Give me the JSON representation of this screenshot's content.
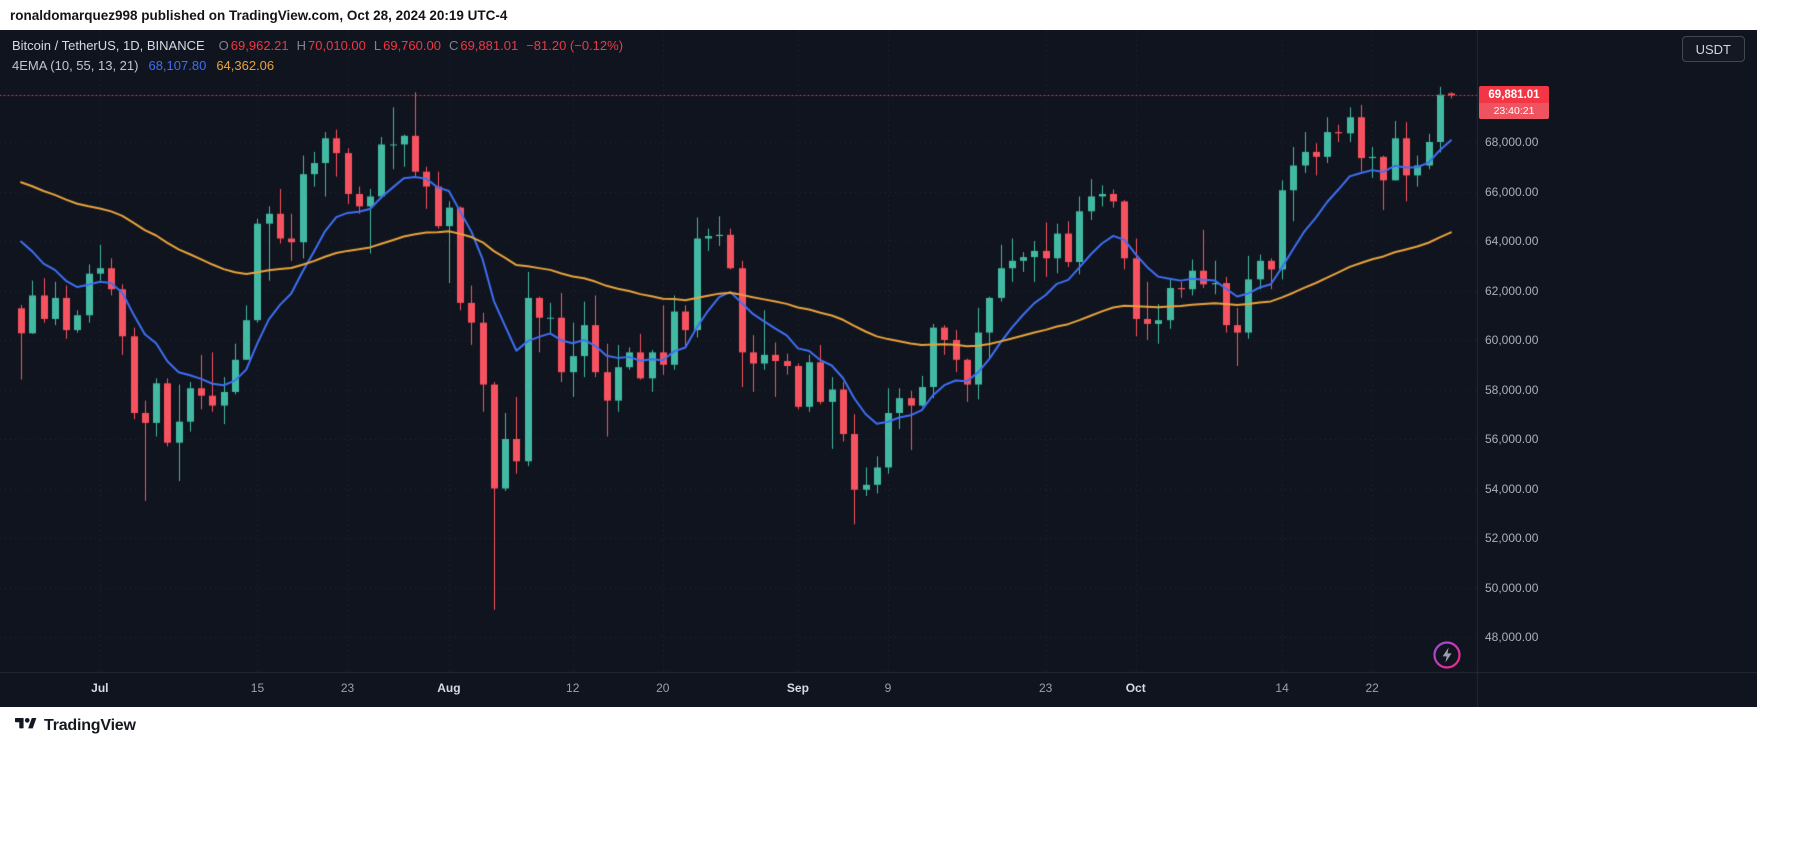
{
  "page": {
    "header": "ronaldomarquez998 published on TradingView.com, Oct 28, 2024 20:19 UTC-4",
    "footer_brand": "TradingView"
  },
  "legend": {
    "symbol": "Bitcoin / TetherUS, 1D, BINANCE",
    "ohlc": {
      "o_label": "O",
      "o": "69,962.21",
      "h_label": "H",
      "h": "70,010.00",
      "l_label": "L",
      "l": "69,760.00",
      "c_label": "C",
      "c": "69,881.01",
      "change": "−81.20 (−0.12%)"
    },
    "indicator": {
      "name": "4EMA (10, 55, 13, 21)",
      "fast_value": "68,107.80",
      "slow_value": "64,362.06"
    }
  },
  "currency_button": "USDT",
  "price_tag": {
    "price": "69,881.01",
    "countdown": "23:40:21"
  },
  "price_axis": {
    "labels": [
      {
        "text": "68,000.00",
        "value": 68000
      },
      {
        "text": "66,000.00",
        "value": 66000
      },
      {
        "text": "64,000.00",
        "value": 64000
      },
      {
        "text": "62,000.00",
        "value": 62000
      },
      {
        "text": "60,000.00",
        "value": 60000
      },
      {
        "text": "58,000.00",
        "value": 58000
      },
      {
        "text": "56,000.00",
        "value": 56000
      },
      {
        "text": "54,000.00",
        "value": 54000
      },
      {
        "text": "52,000.00",
        "value": 52000
      },
      {
        "text": "50,000.00",
        "value": 50000
      },
      {
        "text": "48,000.00",
        "value": 48000
      }
    ]
  },
  "time_axis": {
    "ticks": [
      {
        "label": "Jul",
        "i": 7,
        "major": true
      },
      {
        "label": "15",
        "i": 21,
        "major": false
      },
      {
        "label": "23",
        "i": 29,
        "major": false
      },
      {
        "label": "Aug",
        "i": 38,
        "major": true
      },
      {
        "label": "12",
        "i": 49,
        "major": false
      },
      {
        "label": "20",
        "i": 57,
        "major": false
      },
      {
        "label": "Sep",
        "i": 69,
        "major": true
      },
      {
        "label": "9",
        "i": 77,
        "major": false
      },
      {
        "label": "23",
        "i": 91,
        "major": false
      },
      {
        "label": "Oct",
        "i": 99,
        "major": true
      },
      {
        "label": "14",
        "i": 112,
        "major": false
      },
      {
        "label": "22",
        "i": 120,
        "major": false
      }
    ]
  },
  "colors": {
    "background": "#10141e",
    "up": "#42b9a2",
    "down": "#f7525f",
    "ema_fast": "#3e6ff5",
    "ema_slow": "#e8a33c",
    "last_price": "#f23645",
    "grid": "rgba(205,210,222,0.10)",
    "separator": "#232a37"
  },
  "chart_data": {
    "type": "candlestick",
    "title": "Bitcoin / TetherUS, 1D, BINANCE",
    "interval": "1D",
    "last_price": 69881.01,
    "ylim": [
      46500,
      72300
    ],
    "legend_position": "top-left",
    "grid": "dotted",
    "overlays": [
      {
        "name": "EMA fast",
        "period": 10,
        "color": "#3e6ff5",
        "start_value": 64800,
        "last_value": 68107.8
      },
      {
        "name": "EMA slow",
        "period": 55,
        "color": "#e8a33c",
        "start_value": 66600,
        "last_value": 64362.06
      }
    ],
    "candles": [
      [
        "Jun 24",
        61280,
        61420,
        58400,
        60270
      ],
      [
        "Jun 25",
        60270,
        62400,
        60250,
        61800
      ],
      [
        "Jun 26",
        61800,
        62500,
        60700,
        60850
      ],
      [
        "Jun 27",
        60850,
        62350,
        60600,
        61700
      ],
      [
        "Jun 28",
        61700,
        62200,
        60050,
        60400
      ],
      [
        "Jun 29",
        60400,
        61200,
        60300,
        61000
      ],
      [
        "Jun 30",
        61000,
        63050,
        60700,
        62680
      ],
      [
        "Jul 1",
        62680,
        63850,
        62400,
        62900
      ],
      [
        "Jul 2",
        62900,
        63300,
        61800,
        62050
      ],
      [
        "Jul 3",
        62050,
        62250,
        59400,
        60150
      ],
      [
        "Jul 4",
        60150,
        60500,
        56800,
        57050
      ],
      [
        "Jul 5",
        57050,
        57550,
        53500,
        56650
      ],
      [
        "Jul 6",
        56650,
        58450,
        56100,
        58250
      ],
      [
        "Jul 7",
        58250,
        58450,
        55700,
        55850
      ],
      [
        "Jul 8",
        55850,
        58200,
        54300,
        56700
      ],
      [
        "Jul 9",
        56700,
        58300,
        56300,
        58050
      ],
      [
        "Jul 10",
        58050,
        59400,
        57200,
        57750
      ],
      [
        "Jul 11",
        57750,
        59500,
        57100,
        57350
      ],
      [
        "Jul 12",
        57350,
        58500,
        56600,
        57900
      ],
      [
        "Jul 13",
        57900,
        59850,
        57800,
        59200
      ],
      [
        "Jul 14",
        59200,
        61400,
        59200,
        60800
      ],
      [
        "Jul 15",
        60800,
        64900,
        60700,
        64700
      ],
      [
        "Jul 16",
        64700,
        65400,
        62400,
        65100
      ],
      [
        "Jul 17",
        65100,
        66100,
        63900,
        64100
      ],
      [
        "Jul 18",
        64100,
        65100,
        63200,
        63950
      ],
      [
        "Jul 19",
        63950,
        67450,
        63300,
        66700
      ],
      [
        "Jul 20",
        66700,
        67600,
        66200,
        67150
      ],
      [
        "Jul 21",
        67150,
        68400,
        65800,
        68150
      ],
      [
        "Jul 22",
        68150,
        68500,
        66600,
        67550
      ],
      [
        "Jul 23",
        67550,
        67750,
        65500,
        65900
      ],
      [
        "Jul 24",
        65900,
        66200,
        65100,
        65400
      ],
      [
        "Jul 25",
        65400,
        66100,
        63500,
        65800
      ],
      [
        "Jul 26",
        65800,
        68200,
        65700,
        67900
      ],
      [
        "Jul 27",
        67900,
        69400,
        66900,
        67900
      ],
      [
        "Jul 28",
        67900,
        68300,
        67000,
        68250
      ],
      [
        "Jul 29",
        68250,
        70010,
        66550,
        66800
      ],
      [
        "Jul 30",
        66800,
        67000,
        65300,
        66200
      ],
      [
        "Jul 31",
        66200,
        66800,
        64500,
        64600
      ],
      [
        "Aug 1",
        64600,
        65600,
        62300,
        65350
      ],
      [
        "Aug 2",
        65350,
        65400,
        61200,
        61500
      ],
      [
        "Aug 3",
        61500,
        62200,
        59800,
        60700
      ],
      [
        "Aug 4",
        60700,
        61100,
        57100,
        58200
      ],
      [
        "Aug 5",
        58200,
        58300,
        49100,
        54000
      ],
      [
        "Aug 6",
        54000,
        57050,
        53900,
        56000
      ],
      [
        "Aug 7",
        56000,
        57700,
        54600,
        55100
      ],
      [
        "Aug 8",
        55100,
        62750,
        54900,
        61700
      ],
      [
        "Aug 9",
        61700,
        61750,
        59500,
        60900
      ],
      [
        "Aug 10",
        60900,
        61500,
        60250,
        60900
      ],
      [
        "Aug 11",
        60900,
        61900,
        58300,
        58700
      ],
      [
        "Aug 12",
        58700,
        60700,
        57700,
        59350
      ],
      [
        "Aug 13",
        59350,
        61550,
        58500,
        60600
      ],
      [
        "Aug 14",
        60600,
        61800,
        58500,
        58700
      ],
      [
        "Aug 15",
        58700,
        59850,
        56100,
        57550
      ],
      [
        "Aug 16",
        57550,
        59800,
        57100,
        58900
      ],
      [
        "Aug 17",
        58900,
        59700,
        58800,
        59500
      ],
      [
        "Aug 18",
        59500,
        60250,
        58400,
        58450
      ],
      [
        "Aug 19",
        58450,
        59600,
        57900,
        59500
      ],
      [
        "Aug 20",
        59500,
        61400,
        58600,
        59000
      ],
      [
        "Aug 21",
        59000,
        61800,
        58800,
        61150
      ],
      [
        "Aug 22",
        61150,
        61400,
        59750,
        60400
      ],
      [
        "Aug 23",
        60400,
        64950,
        60100,
        64100
      ],
      [
        "Aug 24",
        64100,
        64500,
        63600,
        64200
      ],
      [
        "Aug 25",
        64200,
        65000,
        63800,
        64250
      ],
      [
        "Aug 26",
        64250,
        64500,
        62850,
        62900
      ],
      [
        "Aug 27",
        62900,
        63200,
        58100,
        59500
      ],
      [
        "Aug 28",
        59500,
        60200,
        57900,
        59050
      ],
      [
        "Aug 29",
        59050,
        61200,
        58800,
        59400
      ],
      [
        "Aug 30",
        59400,
        59900,
        57700,
        59150
      ],
      [
        "Aug 31",
        59150,
        59450,
        58600,
        58950
      ],
      [
        "Sep 1",
        58950,
        59050,
        57200,
        57300
      ],
      [
        "Sep 2",
        57300,
        59400,
        57100,
        59100
      ],
      [
        "Sep 3",
        59100,
        59800,
        57400,
        57500
      ],
      [
        "Sep 4",
        57500,
        58500,
        55600,
        58000
      ],
      [
        "Sep 5",
        58000,
        58300,
        55900,
        56200
      ],
      [
        "Sep 6",
        56200,
        57000,
        52550,
        53950
      ],
      [
        "Sep 7",
        53950,
        54850,
        53700,
        54150
      ],
      [
        "Sep 8",
        54150,
        55300,
        53800,
        54850
      ],
      [
        "Sep 9",
        54850,
        58050,
        54600,
        57050
      ],
      [
        "Sep 10",
        57050,
        58050,
        56400,
        57650
      ],
      [
        "Sep 11",
        57650,
        57950,
        55550,
        57350
      ],
      [
        "Sep 12",
        57350,
        58550,
        57300,
        58100
      ],
      [
        "Sep 13",
        58100,
        60650,
        57650,
        60500
      ],
      [
        "Sep 14",
        60500,
        60600,
        59400,
        60000
      ],
      [
        "Sep 15",
        60000,
        60400,
        58700,
        59200
      ],
      [
        "Sep 16",
        59200,
        59250,
        57500,
        58200
      ],
      [
        "Sep 17",
        58200,
        61300,
        57600,
        60300
      ],
      [
        "Sep 18",
        60300,
        61750,
        59200,
        61700
      ],
      [
        "Sep 19",
        61700,
        63850,
        61550,
        62900
      ],
      [
        "Sep 20",
        62900,
        64100,
        62350,
        63200
      ],
      [
        "Sep 21",
        63200,
        63550,
        62750,
        63350
      ],
      [
        "Sep 22",
        63350,
        64000,
        62350,
        63600
      ],
      [
        "Sep 23",
        63600,
        64750,
        62550,
        63300
      ],
      [
        "Sep 24",
        63300,
        64700,
        62700,
        64300
      ],
      [
        "Sep 25",
        64300,
        64800,
        62950,
        63150
      ],
      [
        "Sep 26",
        63150,
        65800,
        62650,
        65200
      ],
      [
        "Sep 27",
        65200,
        66500,
        64850,
        65800
      ],
      [
        "Sep 28",
        65800,
        66250,
        65400,
        65900
      ],
      [
        "Sep 29",
        65900,
        66080,
        65350,
        65600
      ],
      [
        "Sep 30",
        65600,
        65650,
        62850,
        63300
      ],
      [
        "Oct 1",
        63300,
        64100,
        60150,
        60850
      ],
      [
        "Oct 2",
        60850,
        62350,
        60000,
        60650
      ],
      [
        "Oct 3",
        60650,
        61450,
        59850,
        60800
      ],
      [
        "Oct 4",
        60800,
        62450,
        60450,
        62100
      ],
      [
        "Oct 5",
        62100,
        62350,
        61700,
        62050
      ],
      [
        "Oct 6",
        62050,
        63250,
        61800,
        62800
      ],
      [
        "Oct 7",
        62800,
        64450,
        62100,
        62250
      ],
      [
        "Oct 8",
        62250,
        63200,
        61850,
        62300
      ],
      [
        "Oct 9",
        62300,
        62550,
        60300,
        60600
      ],
      [
        "Oct 10",
        60600,
        61300,
        58950,
        60300
      ],
      [
        "Oct 11",
        60300,
        63400,
        60050,
        62450
      ],
      [
        "Oct 12",
        62450,
        63450,
        62050,
        63200
      ],
      [
        "Oct 13",
        63200,
        63300,
        62050,
        62850
      ],
      [
        "Oct 14",
        62850,
        66450,
        62450,
        66050
      ],
      [
        "Oct 15",
        66050,
        67800,
        64800,
        67050
      ],
      [
        "Oct 16",
        67050,
        68400,
        66750,
        67600
      ],
      [
        "Oct 17",
        67600,
        67950,
        66650,
        67400
      ],
      [
        "Oct 18",
        67400,
        69000,
        67150,
        68400
      ],
      [
        "Oct 19",
        68400,
        68700,
        68000,
        68350
      ],
      [
        "Oct 20",
        68350,
        69400,
        68000,
        69000
      ],
      [
        "Oct 21",
        69000,
        69500,
        66800,
        67350
      ],
      [
        "Oct 22",
        67350,
        67800,
        66550,
        67400
      ],
      [
        "Oct 23",
        67400,
        67450,
        65250,
        66450
      ],
      [
        "Oct 24",
        66450,
        68850,
        66450,
        68150
      ],
      [
        "Oct 25",
        68150,
        68800,
        65600,
        66650
      ],
      [
        "Oct 26",
        66650,
        67450,
        66200,
        67050
      ],
      [
        "Oct 27",
        67050,
        68330,
        66900,
        68000
      ],
      [
        "Oct 28",
        68000,
        70230,
        67580,
        69910
      ],
      [
        "Oct 29",
        69962.21,
        70010,
        69760,
        69881.01
      ]
    ]
  }
}
